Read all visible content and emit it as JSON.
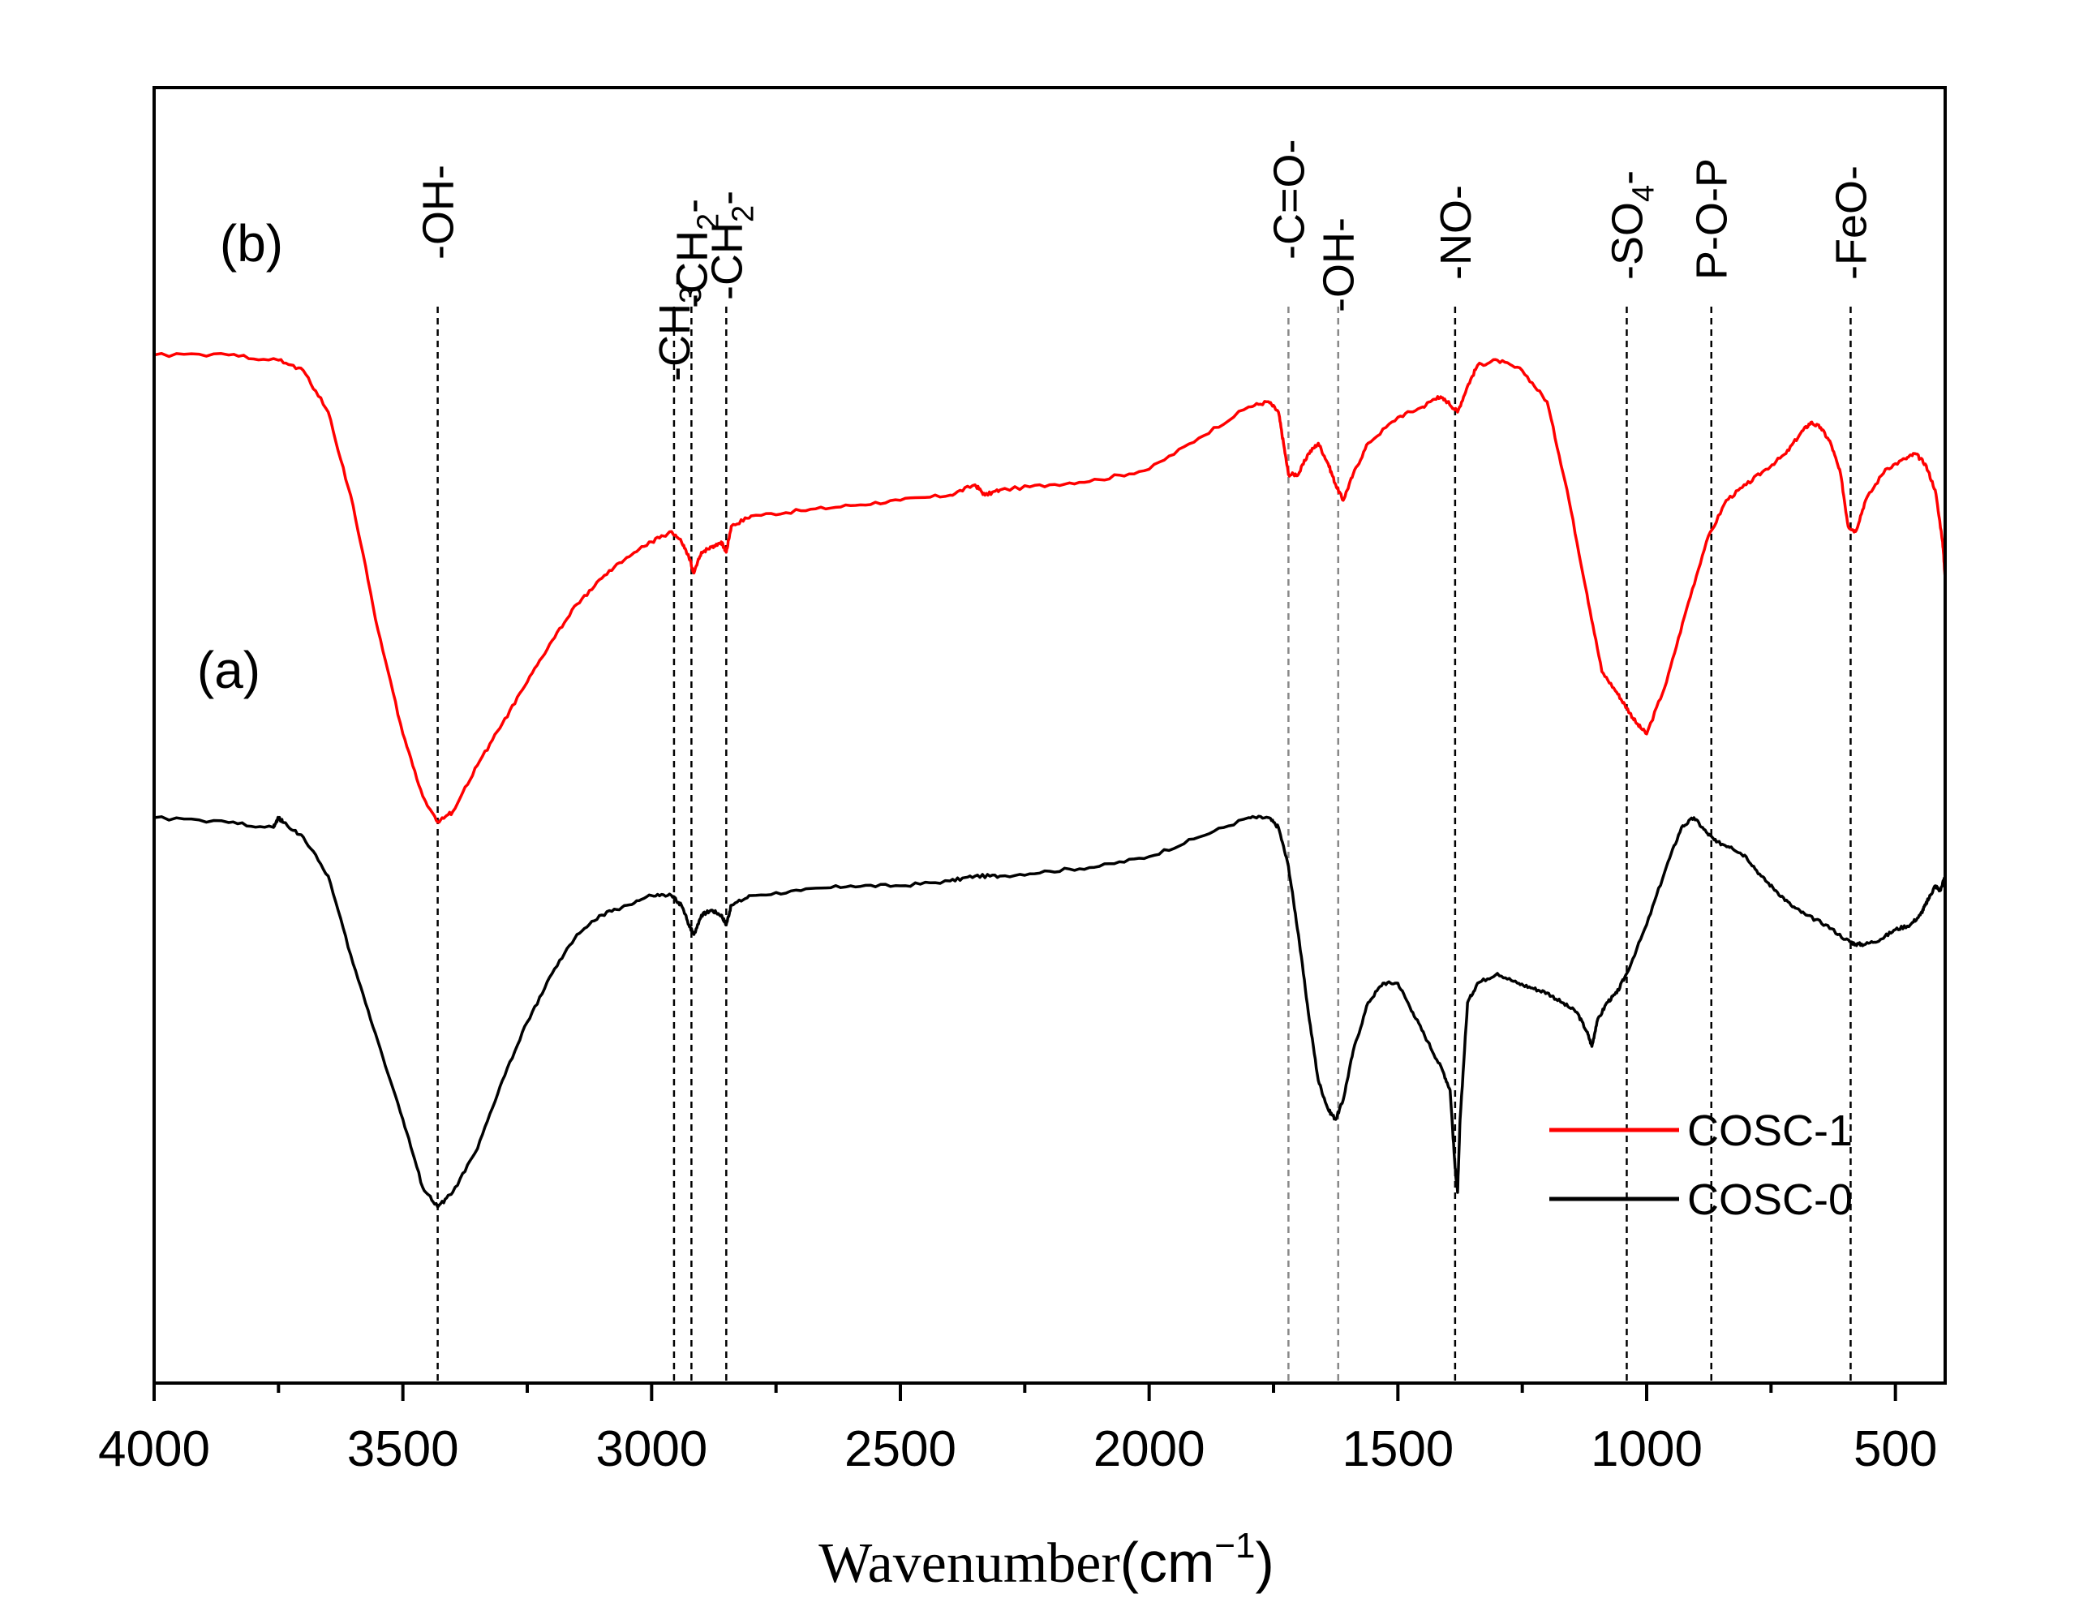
{
  "chart_data": {
    "type": "line",
    "title": "",
    "xlabel": "Wavenumber",
    "xunit": "cm",
    "xunit_exp": "−1",
    "ylabel": "",
    "xlim": [
      4000,
      400
    ],
    "x_reversed": true,
    "x_ticks": [
      4000,
      3500,
      3000,
      2500,
      2000,
      1500,
      1000,
      500
    ],
    "y_ticks_shown": false,
    "legend_position": "bottom-right",
    "panel_labels": [
      {
        "text": "(b)",
        "series": "COSC-1"
      },
      {
        "text": "(a)",
        "series": "COSC-0"
      }
    ],
    "series": [
      {
        "name": "COSC-1",
        "color": "#ff0000",
        "x": [
          4000,
          3850,
          3750,
          3700,
          3650,
          3600,
          3550,
          3500,
          3460,
          3430,
          3400,
          3350,
          3300,
          3250,
          3200,
          3150,
          3100,
          3050,
          3000,
          2960,
          2940,
          2925,
          2915,
          2900,
          2880,
          2860,
          2850,
          2840,
          2800,
          2700,
          2600,
          2500,
          2400,
          2350,
          2330,
          2300,
          2200,
          2100,
          2000,
          1900,
          1800,
          1760,
          1740,
          1730,
          1720,
          1700,
          1680,
          1660,
          1640,
          1625,
          1610,
          1590,
          1560,
          1500,
          1450,
          1420,
          1400,
          1380,
          1360,
          1340,
          1300,
          1250,
          1200,
          1160,
          1120,
          1090,
          1060,
          1040,
          1020,
          1000,
          960,
          920,
          880,
          840,
          800,
          760,
          720,
          690,
          670,
          650,
          630,
          610,
          595,
          580,
          560,
          520,
          480,
          460,
          440,
          420,
          405,
          400
        ],
        "y": [
          91,
          91,
          90,
          88,
          80,
          62,
          38,
          18,
          6,
          1,
          3,
          12,
          20,
          28,
          36,
          43,
          48,
          52,
          55,
          57,
          55,
          52,
          49,
          53,
          54,
          55,
          53,
          58,
          60,
          61,
          62,
          63,
          64,
          66,
          64,
          65,
          66,
          67,
          69,
          75,
          81,
          82,
          80,
          74,
          68,
          68,
          72,
          74,
          70,
          66,
          63,
          68,
          74,
          79,
          81,
          83,
          82,
          80,
          85,
          89,
          90,
          88,
          82,
          65,
          45,
          30,
          26,
          23,
          20,
          18,
          28,
          42,
          55,
          63,
          66,
          69,
          72,
          76,
          78,
          77,
          74,
          68,
          58,
          57,
          63,
          69,
          71,
          72,
          70,
          65,
          55,
          48
        ]
      },
      {
        "name": "COSC-0",
        "color": "#000000",
        "x": [
          4000,
          3850,
          3760,
          3750,
          3740,
          3700,
          3650,
          3600,
          3550,
          3500,
          3460,
          3430,
          3400,
          3350,
          3300,
          3250,
          3200,
          3150,
          3100,
          3050,
          3000,
          2960,
          2940,
          2925,
          2915,
          2900,
          2880,
          2860,
          2850,
          2840,
          2800,
          2700,
          2600,
          2500,
          2400,
          2350,
          2300,
          2200,
          2100,
          2000,
          1900,
          1800,
          1760,
          1740,
          1720,
          1700,
          1680,
          1660,
          1640,
          1625,
          1610,
          1590,
          1560,
          1530,
          1500,
          1470,
          1440,
          1410,
          1395,
          1385,
          1380,
          1375,
          1360,
          1340,
          1300,
          1260,
          1230,
          1200,
          1170,
          1140,
          1120,
          1110,
          1100,
          1080,
          1060,
          1040,
          1000,
          960,
          930,
          905,
          880,
          860,
          830,
          800,
          770,
          740,
          710,
          680,
          640,
          600,
          580,
          560,
          530,
          500,
          470,
          450,
          440,
          430,
          420,
          410,
          400
        ],
        "y": [
          82,
          81,
          80,
          82,
          81,
          78,
          70,
          52,
          36,
          20,
          6,
          2,
          5,
          14,
          28,
          40,
          50,
          58,
          62,
          64,
          66,
          66,
          64,
          60,
          58,
          62,
          63,
          62,
          60,
          64,
          66,
          67,
          68,
          68,
          69,
          70,
          70,
          71,
          72,
          74,
          78,
          82,
          82,
          80,
          72,
          58,
          42,
          28,
          22,
          20,
          24,
          34,
          44,
          48,
          48,
          42,
          36,
          30,
          26,
          10,
          5,
          20,
          44,
          48,
          50,
          48,
          47,
          46,
          44,
          42,
          38,
          35,
          40,
          44,
          46,
          50,
          60,
          72,
          80,
          82,
          79,
          77,
          76,
          74,
          70,
          67,
          64,
          62,
          60,
          57,
          56,
          56,
          57,
          59,
          60,
          62,
          64,
          66,
          68,
          67,
          70
        ]
      }
    ],
    "reference_lines": [
      {
        "x": 3430,
        "label": "-OH-",
        "color": "#000000"
      },
      {
        "x": 2955,
        "label": "-CH3-",
        "label_main": "-CH",
        "label_sub": "3",
        "label_tail": "-",
        "color": "#000000"
      },
      {
        "x": 2920,
        "label": "-CH2-",
        "label_main": "-CH",
        "label_sub": "2",
        "label_tail": "-",
        "color": "#000000"
      },
      {
        "x": 2850,
        "label": "-CH2-",
        "label_main": "-CH",
        "label_sub": "2",
        "label_tail": "-",
        "color": "#000000"
      },
      {
        "x": 1720,
        "label": "-C=O-",
        "color": "#888888"
      },
      {
        "x": 1620,
        "label": "-OH-",
        "color": "#888888"
      },
      {
        "x": 1385,
        "label": "-NO-",
        "color": "#000000"
      },
      {
        "x": 1040,
        "label": "-SO4-",
        "label_main": "-SO",
        "label_sub": "4",
        "label_tail": "-",
        "color": "#000000"
      },
      {
        "x": 870,
        "label": "P-O-P",
        "color": "#000000"
      },
      {
        "x": 590,
        "label": "-FeO-",
        "color": "#000000"
      }
    ]
  }
}
